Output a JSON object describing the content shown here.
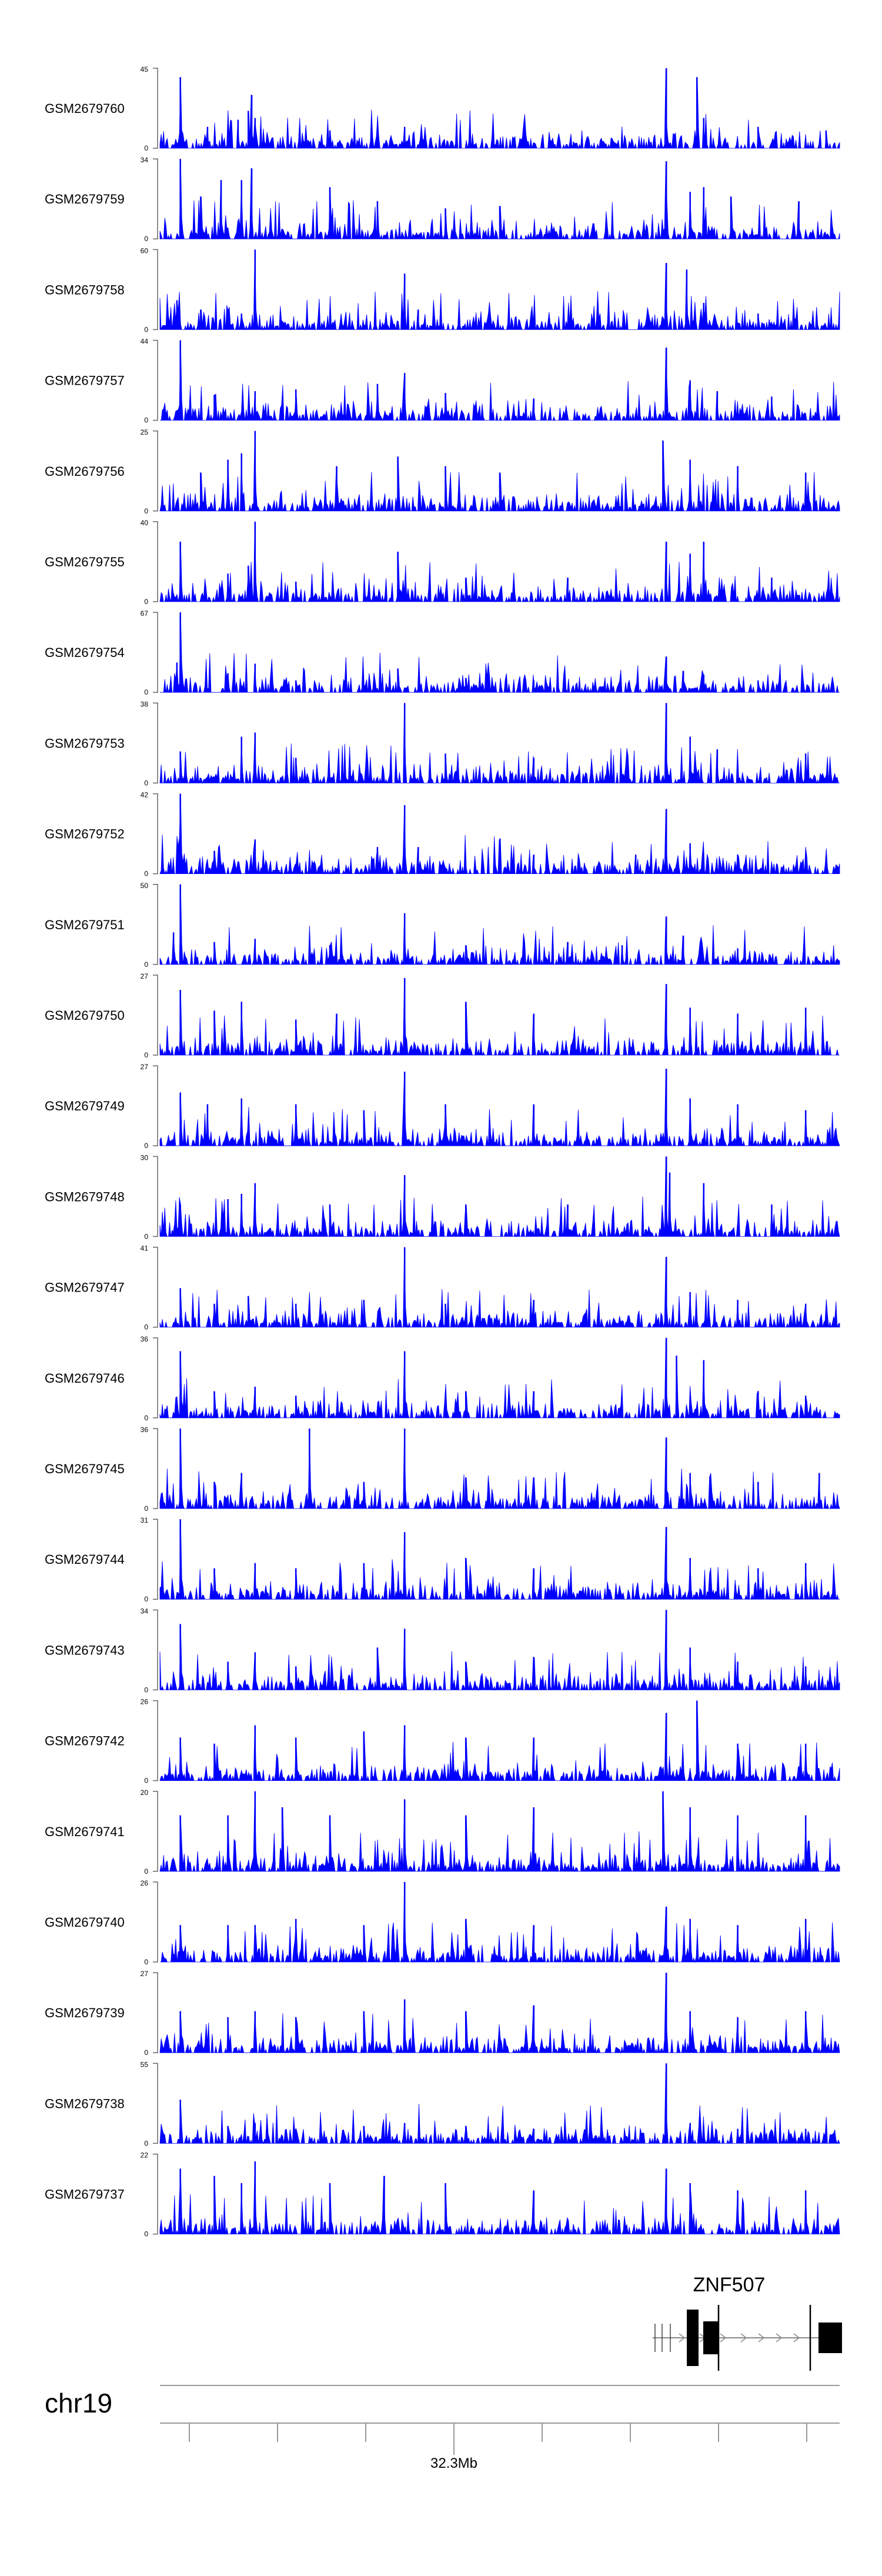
{
  "chart_data": {
    "type": "area",
    "title": "",
    "color": "#0000ff",
    "chromosome": "chr19",
    "x_tick_label": "32.3Mb",
    "gene": {
      "name": "ZNF507",
      "color": "#000000"
    },
    "tracks": [
      {
        "name": "GSM2679760",
        "ymax": 45,
        "peaks": [
          [
            0.03,
            40
          ],
          [
            0.13,
            21
          ],
          [
            0.135,
            30
          ],
          [
            0.14,
            17
          ],
          [
            0.115,
            16
          ],
          [
            0.07,
            12
          ],
          [
            0.25,
            10
          ],
          [
            0.36,
            12
          ],
          [
            0.745,
            45
          ],
          [
            0.79,
            40
          ],
          [
            0.8,
            17
          ],
          [
            0.88,
            12
          ],
          [
            0.98,
            10
          ]
        ]
      },
      {
        "name": "GSM2679759",
        "ymax": 34,
        "peaks": [
          [
            0.03,
            34
          ],
          [
            0.06,
            18
          ],
          [
            0.09,
            25
          ],
          [
            0.12,
            25
          ],
          [
            0.135,
            30
          ],
          [
            0.25,
            22
          ],
          [
            0.32,
            16
          ],
          [
            0.42,
            13
          ],
          [
            0.5,
            14
          ],
          [
            0.745,
            33
          ],
          [
            0.78,
            20
          ],
          [
            0.8,
            22
          ],
          [
            0.84,
            18
          ],
          [
            0.94,
            16
          ]
        ]
      },
      {
        "name": "GSM2679758",
        "ymax": 60,
        "peaks": [
          [
            0.025,
            22
          ],
          [
            0.06,
            15
          ],
          [
            0.14,
            60
          ],
          [
            0.12,
            12
          ],
          [
            0.36,
            42
          ],
          [
            0.38,
            15
          ],
          [
            0.745,
            50
          ],
          [
            0.775,
            45
          ],
          [
            0.8,
            20
          ],
          [
            0.88,
            12
          ]
        ]
      },
      {
        "name": "GSM2679757",
        "ymax": 44,
        "peaks": [
          [
            0.03,
            44
          ],
          [
            0.08,
            14
          ],
          [
            0.14,
            16
          ],
          [
            0.2,
            17
          ],
          [
            0.32,
            20
          ],
          [
            0.36,
            26
          ],
          [
            0.42,
            15
          ],
          [
            0.55,
            12
          ],
          [
            0.745,
            40
          ],
          [
            0.78,
            22
          ],
          [
            0.82,
            16
          ],
          [
            0.9,
            13
          ]
        ]
      },
      {
        "name": "GSM2679756",
        "ymax": 25,
        "peaks": [
          [
            0.1,
            16
          ],
          [
            0.14,
            25
          ],
          [
            0.12,
            18
          ],
          [
            0.06,
            12
          ],
          [
            0.26,
            14
          ],
          [
            0.35,
            17
          ],
          [
            0.42,
            14
          ],
          [
            0.5,
            12
          ],
          [
            0.74,
            22
          ],
          [
            0.78,
            16
          ],
          [
            0.85,
            14
          ],
          [
            0.95,
            12
          ]
        ]
      },
      {
        "name": "GSM2679755",
        "ymax": 40,
        "peaks": [
          [
            0.03,
            30
          ],
          [
            0.1,
            14
          ],
          [
            0.13,
            18
          ],
          [
            0.14,
            40
          ],
          [
            0.2,
            10
          ],
          [
            0.35,
            25
          ],
          [
            0.45,
            12
          ],
          [
            0.6,
            12
          ],
          [
            0.745,
            30
          ],
          [
            0.78,
            24
          ],
          [
            0.8,
            30
          ],
          [
            0.9,
            12
          ]
        ]
      },
      {
        "name": "GSM2679754",
        "ymax": 67,
        "peaks": [
          [
            0.03,
            67
          ],
          [
            0.025,
            25
          ],
          [
            0.1,
            16
          ],
          [
            0.14,
            24
          ],
          [
            0.2,
            10
          ],
          [
            0.35,
            20
          ],
          [
            0.45,
            12
          ],
          [
            0.55,
            10
          ],
          [
            0.745,
            30
          ],
          [
            0.77,
            18
          ],
          [
            0.8,
            15
          ],
          [
            0.88,
            10
          ]
        ]
      },
      {
        "name": "GSM2679753",
        "ymax": 38,
        "peaks": [
          [
            0.03,
            15
          ],
          [
            0.12,
            22
          ],
          [
            0.14,
            24
          ],
          [
            0.2,
            12
          ],
          [
            0.36,
            38
          ],
          [
            0.42,
            14
          ],
          [
            0.55,
            12
          ],
          [
            0.745,
            38
          ],
          [
            0.78,
            22
          ],
          [
            0.82,
            16
          ],
          [
            0.95,
            14
          ]
        ]
      },
      {
        "name": "GSM2679752",
        "ymax": 42,
        "peaks": [
          [
            0.03,
            42
          ],
          [
            0.08,
            12
          ],
          [
            0.14,
            18
          ],
          [
            0.32,
            14
          ],
          [
            0.36,
            36
          ],
          [
            0.38,
            14
          ],
          [
            0.55,
            10
          ],
          [
            0.7,
            10
          ],
          [
            0.745,
            34
          ],
          [
            0.78,
            16
          ],
          [
            0.85,
            10
          ]
        ]
      },
      {
        "name": "GSM2679751",
        "ymax": 50,
        "peaks": [
          [
            0.03,
            50
          ],
          [
            0.02,
            20
          ],
          [
            0.08,
            14
          ],
          [
            0.14,
            16
          ],
          [
            0.25,
            12
          ],
          [
            0.36,
            32
          ],
          [
            0.45,
            12
          ],
          [
            0.6,
            14
          ],
          [
            0.68,
            12
          ],
          [
            0.745,
            30
          ],
          [
            0.77,
            18
          ],
          [
            0.85,
            10
          ]
        ]
      },
      {
        "name": "GSM2679750",
        "ymax": 27,
        "peaks": [
          [
            0.03,
            22
          ],
          [
            0.08,
            15
          ],
          [
            0.12,
            18
          ],
          [
            0.2,
            12
          ],
          [
            0.26,
            14
          ],
          [
            0.36,
            26
          ],
          [
            0.45,
            18
          ],
          [
            0.55,
            14
          ],
          [
            0.745,
            24
          ],
          [
            0.78,
            16
          ],
          [
            0.85,
            14
          ],
          [
            0.95,
            16
          ]
        ]
      },
      {
        "name": "GSM2679749",
        "ymax": 27,
        "peaks": [
          [
            0.03,
            18
          ],
          [
            0.07,
            14
          ],
          [
            0.12,
            16
          ],
          [
            0.2,
            14
          ],
          [
            0.3,
            12
          ],
          [
            0.36,
            25
          ],
          [
            0.42,
            14
          ],
          [
            0.55,
            14
          ],
          [
            0.745,
            26
          ],
          [
            0.78,
            16
          ],
          [
            0.85,
            14
          ],
          [
            0.95,
            12
          ]
        ]
      },
      {
        "name": "GSM2679748",
        "ymax": 30,
        "peaks": [
          [
            0.03,
            12
          ],
          [
            0.1,
            14
          ],
          [
            0.14,
            20
          ],
          [
            0.12,
            16
          ],
          [
            0.25,
            12
          ],
          [
            0.36,
            23
          ],
          [
            0.45,
            12
          ],
          [
            0.6,
            12
          ],
          [
            0.745,
            30
          ],
          [
            0.75,
            24
          ],
          [
            0.8,
            20
          ],
          [
            0.9,
            12
          ]
        ]
      },
      {
        "name": "GSM2679747",
        "ymax": 41,
        "peaks": [
          [
            0.03,
            20
          ],
          [
            0.08,
            12
          ],
          [
            0.13,
            16
          ],
          [
            0.2,
            12
          ],
          [
            0.3,
            14
          ],
          [
            0.36,
            41
          ],
          [
            0.42,
            12
          ],
          [
            0.55,
            14
          ],
          [
            0.745,
            36
          ],
          [
            0.78,
            18
          ],
          [
            0.85,
            14
          ],
          [
            0.95,
            12
          ]
        ]
      },
      {
        "name": "GSM2679746",
        "ymax": 36,
        "peaks": [
          [
            0.03,
            30
          ],
          [
            0.08,
            12
          ],
          [
            0.14,
            14
          ],
          [
            0.2,
            10
          ],
          [
            0.36,
            30
          ],
          [
            0.45,
            12
          ],
          [
            0.55,
            12
          ],
          [
            0.745,
            36
          ],
          [
            0.76,
            28
          ],
          [
            0.8,
            26
          ],
          [
            0.88,
            12
          ],
          [
            0.95,
            10
          ]
        ]
      },
      {
        "name": "GSM2679745",
        "ymax": 36,
        "peaks": [
          [
            0.03,
            36
          ],
          [
            0.08,
            12
          ],
          [
            0.12,
            16
          ],
          [
            0.22,
            36
          ],
          [
            0.3,
            12
          ],
          [
            0.36,
            36
          ],
          [
            0.45,
            14
          ],
          [
            0.55,
            14
          ],
          [
            0.745,
            32
          ],
          [
            0.78,
            16
          ],
          [
            0.88,
            12
          ],
          [
            0.97,
            16
          ]
        ]
      },
      {
        "name": "GSM2679744",
        "ymax": 31,
        "peaks": [
          [
            0.03,
            31
          ],
          [
            0.08,
            12
          ],
          [
            0.14,
            14
          ],
          [
            0.2,
            12
          ],
          [
            0.3,
            14
          ],
          [
            0.36,
            26
          ],
          [
            0.45,
            16
          ],
          [
            0.55,
            12
          ],
          [
            0.745,
            28
          ],
          [
            0.78,
            16
          ],
          [
            0.88,
            12
          ],
          [
            0.95,
            14
          ]
        ]
      },
      {
        "name": "GSM2679743",
        "ymax": 34,
        "peaks": [
          [
            0.03,
            28
          ],
          [
            0.1,
            12
          ],
          [
            0.14,
            16
          ],
          [
            0.2,
            10
          ],
          [
            0.32,
            18
          ],
          [
            0.36,
            26
          ],
          [
            0.45,
            12
          ],
          [
            0.55,
            14
          ],
          [
            0.745,
            34
          ],
          [
            0.78,
            18
          ],
          [
            0.85,
            12
          ],
          [
            0.95,
            10
          ]
        ]
      },
      {
        "name": "GSM2679742",
        "ymax": 26,
        "peaks": [
          [
            0.03,
            14
          ],
          [
            0.08,
            12
          ],
          [
            0.14,
            18
          ],
          [
            0.2,
            14
          ],
          [
            0.3,
            16
          ],
          [
            0.36,
            18
          ],
          [
            0.45,
            14
          ],
          [
            0.55,
            14
          ],
          [
            0.745,
            22
          ],
          [
            0.79,
            26
          ],
          [
            0.85,
            12
          ],
          [
            0.95,
            12
          ]
        ]
      },
      {
        "name": "GSM2679741",
        "ymax": 20,
        "peaks": [
          [
            0.03,
            14
          ],
          [
            0.1,
            14
          ],
          [
            0.14,
            20
          ],
          [
            0.18,
            16
          ],
          [
            0.25,
            14
          ],
          [
            0.36,
            18
          ],
          [
            0.45,
            14
          ],
          [
            0.55,
            16
          ],
          [
            0.74,
            20
          ],
          [
            0.78,
            16
          ],
          [
            0.85,
            14
          ],
          [
            0.95,
            14
          ]
        ]
      },
      {
        "name": "GSM2679740",
        "ymax": 26,
        "peaks": [
          [
            0.03,
            12
          ],
          [
            0.1,
            12
          ],
          [
            0.14,
            12
          ],
          [
            0.2,
            14
          ],
          [
            0.3,
            12
          ],
          [
            0.36,
            26
          ],
          [
            0.45,
            14
          ],
          [
            0.55,
            12
          ],
          [
            0.745,
            18
          ],
          [
            0.78,
            14
          ],
          [
            0.85,
            12
          ],
          [
            0.95,
            14
          ]
        ]
      },
      {
        "name": "GSM2679739",
        "ymax": 27,
        "peaks": [
          [
            0.03,
            14
          ],
          [
            0.1,
            12
          ],
          [
            0.14,
            14
          ],
          [
            0.2,
            12
          ],
          [
            0.3,
            14
          ],
          [
            0.36,
            18
          ],
          [
            0.45,
            14
          ],
          [
            0.55,
            16
          ],
          [
            0.745,
            27
          ],
          [
            0.78,
            14
          ],
          [
            0.85,
            12
          ],
          [
            0.95,
            14
          ]
        ]
      },
      {
        "name": "GSM2679738",
        "ymax": 55,
        "peaks": [
          [
            0.03,
            30
          ],
          [
            0.1,
            12
          ],
          [
            0.14,
            14
          ],
          [
            0.2,
            10
          ],
          [
            0.3,
            12
          ],
          [
            0.36,
            14
          ],
          [
            0.45,
            12
          ],
          [
            0.55,
            10
          ],
          [
            0.745,
            55
          ],
          [
            0.78,
            14
          ],
          [
            0.85,
            10
          ],
          [
            0.95,
            10
          ]
        ]
      },
      {
        "name": "GSM2679737",
        "ymax": 22,
        "peaks": [
          [
            0.03,
            18
          ],
          [
            0.08,
            16
          ],
          [
            0.14,
            20
          ],
          [
            0.12,
            14
          ],
          [
            0.25,
            14
          ],
          [
            0.33,
            16
          ],
          [
            0.42,
            14
          ],
          [
            0.55,
            12
          ],
          [
            0.745,
            18
          ],
          [
            0.78,
            14
          ],
          [
            0.85,
            12
          ],
          [
            0.95,
            12
          ]
        ]
      }
    ]
  }
}
